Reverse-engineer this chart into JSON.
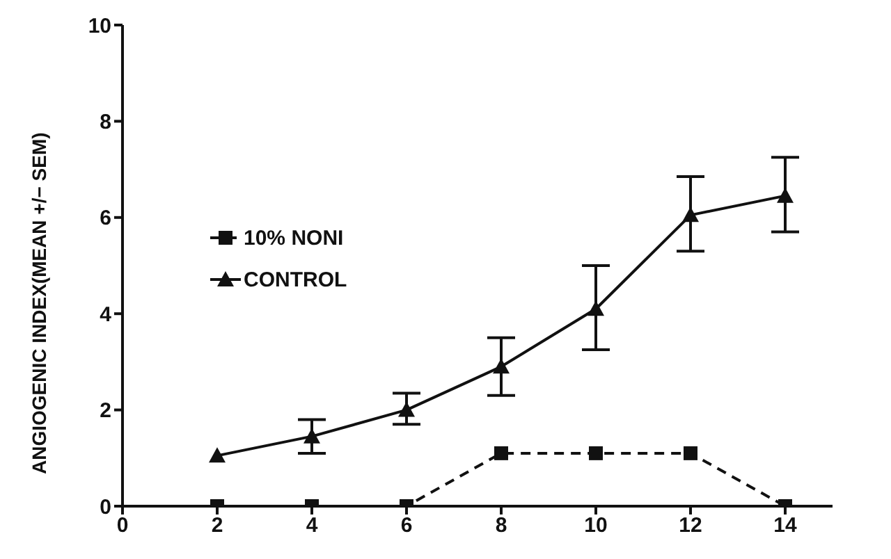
{
  "chart_data": {
    "type": "line",
    "ylabel": "ANGIOGENIC  INDEX(MEAN +/− SEM)",
    "x": [
      2,
      4,
      6,
      8,
      10,
      12,
      14
    ],
    "xlim": [
      0,
      15
    ],
    "xticks": [
      0,
      2,
      4,
      6,
      8,
      10,
      12,
      14
    ],
    "ylim": [
      0,
      10
    ],
    "yticks": [
      0,
      2,
      4,
      6,
      8,
      10
    ],
    "grid": false,
    "legend": "left",
    "series": [
      {
        "name": "10% NONI",
        "color": "#111111",
        "marker": "square",
        "line_style": "dashed",
        "values": [
          0,
          0,
          0,
          1.1,
          1.1,
          1.1,
          0
        ]
      },
      {
        "name": "CONTROL",
        "color": "#111111",
        "marker": "triangle",
        "line_style": "solid",
        "values": [
          1.05,
          1.45,
          2.0,
          2.9,
          4.1,
          6.05,
          6.45
        ],
        "errors": [
          null,
          [
            1.1,
            1.8
          ],
          [
            1.7,
            2.35
          ],
          [
            2.3,
            3.5
          ],
          [
            3.25,
            5.0
          ],
          [
            5.3,
            6.85
          ],
          [
            5.7,
            7.25
          ]
        ]
      }
    ]
  }
}
